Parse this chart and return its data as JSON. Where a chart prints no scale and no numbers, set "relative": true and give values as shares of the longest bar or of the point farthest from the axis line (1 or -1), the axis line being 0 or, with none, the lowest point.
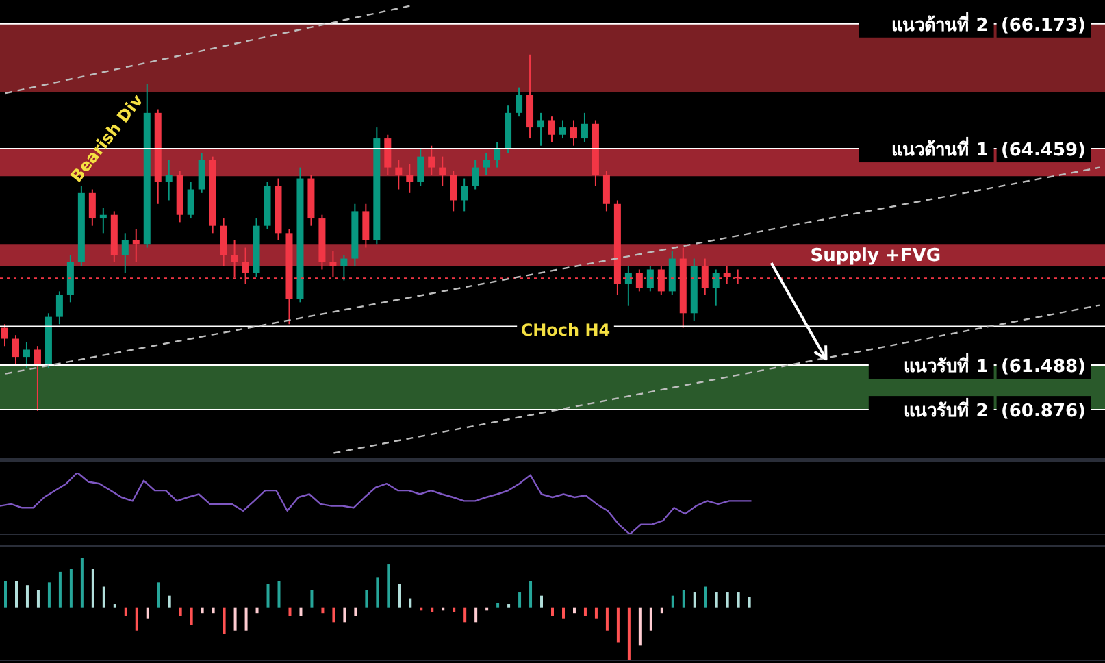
{
  "chart_data": [
    {
      "type": "candlestick",
      "categories": [
        null,
        null,
        null,
        null,
        null,
        null,
        null,
        null,
        null,
        null,
        null,
        null,
        null,
        null,
        null,
        null,
        null,
        null,
        null,
        null,
        null,
        null,
        null,
        null,
        null,
        null,
        null,
        null,
        null,
        null,
        null,
        null,
        null,
        null,
        null,
        null,
        null,
        null,
        null,
        null,
        null,
        null,
        null,
        null,
        null,
        null,
        null,
        null,
        null,
        null,
        null,
        null,
        null,
        null,
        null,
        null,
        null,
        null,
        null,
        null,
        null,
        null,
        null,
        null,
        null,
        null,
        null,
        null,
        null,
        null,
        null,
        null,
        null,
        null,
        null,
        null,
        null,
        null,
        null,
        null,
        null,
        null,
        null,
        null,
        null,
        null,
        null,
        null,
        null,
        null,
        null,
        null,
        null,
        null,
        null,
        null,
        null,
        null,
        null,
        null,
        null
      ],
      "ohlc": [
        [
          62.0,
          62.05,
          61.75,
          61.85
        ],
        [
          61.85,
          61.9,
          61.5,
          61.6
        ],
        [
          61.6,
          61.8,
          61.45,
          61.7
        ],
        [
          61.7,
          61.75,
          60.86,
          61.5
        ],
        [
          61.5,
          62.2,
          61.45,
          62.15
        ],
        [
          62.15,
          62.5,
          62.05,
          62.45
        ],
        [
          62.45,
          63.0,
          62.35,
          62.9
        ],
        [
          62.9,
          63.95,
          62.85,
          63.85
        ],
        [
          63.85,
          63.9,
          63.4,
          63.5
        ],
        [
          63.5,
          63.65,
          63.3,
          63.55
        ],
        [
          63.55,
          63.6,
          62.9,
          63.0
        ],
        [
          63.0,
          63.3,
          62.75,
          63.2
        ],
        [
          63.2,
          63.35,
          62.9,
          63.15
        ],
        [
          63.15,
          65.35,
          63.1,
          64.95
        ],
        [
          64.95,
          65.0,
          63.7,
          64.0
        ],
        [
          64.0,
          64.3,
          63.75,
          64.1
        ],
        [
          64.1,
          64.15,
          63.45,
          63.55
        ],
        [
          63.55,
          64.0,
          63.5,
          63.9
        ],
        [
          63.9,
          64.4,
          63.85,
          64.3
        ],
        [
          64.3,
          64.35,
          63.3,
          63.4
        ],
        [
          63.4,
          63.5,
          62.85,
          63.0
        ],
        [
          63.0,
          63.2,
          62.7,
          62.9
        ],
        [
          62.9,
          63.1,
          62.6,
          62.75
        ],
        [
          62.75,
          63.5,
          62.7,
          63.4
        ],
        [
          63.4,
          64.0,
          63.35,
          63.95
        ],
        [
          63.95,
          64.05,
          63.2,
          63.3
        ],
        [
          63.3,
          63.35,
          62.05,
          62.4
        ],
        [
          62.4,
          64.2,
          62.35,
          64.05
        ],
        [
          64.05,
          64.1,
          63.4,
          63.5
        ],
        [
          63.5,
          63.55,
          62.8,
          62.9
        ],
        [
          62.9,
          63.05,
          62.7,
          62.85
        ],
        [
          62.85,
          63.0,
          62.65,
          62.95
        ],
        [
          62.95,
          63.7,
          62.85,
          63.6
        ],
        [
          63.6,
          63.7,
          63.1,
          63.2
        ],
        [
          63.2,
          64.75,
          63.15,
          64.6
        ],
        [
          64.6,
          64.65,
          64.1,
          64.2
        ],
        [
          64.2,
          64.3,
          63.9,
          64.1
        ],
        [
          64.1,
          64.25,
          63.85,
          64.0
        ],
        [
          64.0,
          64.45,
          63.95,
          64.35
        ],
        [
          64.35,
          64.5,
          64.1,
          64.2
        ],
        [
          64.2,
          64.35,
          63.95,
          64.1
        ],
        [
          64.1,
          64.15,
          63.6,
          63.75
        ],
        [
          63.75,
          64.05,
          63.6,
          63.95
        ],
        [
          63.95,
          64.3,
          63.9,
          64.2
        ],
        [
          64.2,
          64.4,
          64.1,
          64.3
        ],
        [
          64.3,
          64.55,
          64.2,
          64.45
        ],
        [
          64.45,
          65.05,
          64.4,
          64.95
        ],
        [
          64.95,
          65.3,
          64.9,
          65.2
        ],
        [
          65.2,
          65.75,
          64.6,
          64.75
        ],
        [
          64.75,
          64.95,
          64.5,
          64.85
        ],
        [
          64.85,
          64.9,
          64.55,
          64.65
        ],
        [
          64.65,
          64.85,
          64.6,
          64.75
        ],
        [
          64.75,
          64.85,
          64.5,
          64.6
        ],
        [
          64.6,
          64.95,
          64.55,
          64.8
        ],
        [
          64.8,
          64.85,
          63.95,
          64.1
        ],
        [
          64.1,
          64.15,
          63.6,
          63.7
        ],
        [
          63.7,
          63.75,
          62.45,
          62.6
        ],
        [
          62.6,
          62.85,
          62.3,
          62.75
        ],
        [
          62.75,
          62.8,
          62.5,
          62.55
        ],
        [
          62.55,
          62.85,
          62.5,
          62.8
        ],
        [
          62.8,
          62.85,
          62.45,
          62.5
        ],
        [
          62.5,
          63.05,
          62.45,
          62.95
        ],
        [
          62.95,
          63.1,
          62.0,
          62.2
        ],
        [
          62.2,
          62.95,
          62.1,
          62.85
        ],
        [
          62.85,
          62.95,
          62.45,
          62.55
        ],
        [
          62.55,
          62.8,
          62.3,
          62.75
        ],
        [
          62.75,
          62.85,
          62.6,
          62.7
        ],
        [
          62.7,
          62.8,
          62.6,
          62.68
        ],
        null,
        null,
        null,
        null,
        null,
        null,
        null,
        null,
        null,
        null,
        null,
        null,
        null,
        null,
        null,
        null,
        null,
        null,
        null,
        null,
        null,
        null,
        null,
        null,
        null,
        null,
        null,
        null,
        null,
        null,
        null,
        null,
        null
      ],
      "colors": [
        "#f23645",
        "#f23645",
        "#089981",
        "#f23645",
        "#089981",
        "#089981",
        "#089981",
        "#089981",
        "#f23645",
        "#089981",
        "#f23645",
        "#089981",
        "#f23645",
        "#089981",
        "#f23645",
        "#089981",
        "#f23645",
        "#089981",
        "#089981",
        "#f23645",
        "#f23645",
        "#f23645",
        "#f23645",
        "#089981",
        "#089981",
        "#f23645",
        "#f23645",
        "#089981",
        "#f23645",
        "#f23645",
        "#f23645",
        "#089981",
        "#089981",
        "#f23645",
        "#089981",
        "#f23645",
        "#f23645",
        "#f23645",
        "#089981",
        "#f23645",
        "#f23645",
        "#f23645",
        "#089981",
        "#089981",
        "#089981",
        "#089981",
        "#089981",
        "#089981",
        "#f23645",
        "#089981",
        "#f23645",
        "#089981",
        "#f23645",
        "#089981",
        "#f23645",
        "#f23645",
        "#f23645",
        "#089981",
        "#f23645",
        "#089981",
        "#f23645",
        "#089981",
        "#f23645",
        "#089981",
        "#f23645",
        "#089981",
        "#f23645",
        "#f23645",
        null,
        null,
        null,
        null,
        null,
        null,
        null,
        null,
        null,
        null,
        null,
        null,
        null,
        null,
        null,
        null,
        null,
        null,
        null,
        null,
        null,
        null,
        null,
        null,
        null,
        null,
        null,
        null,
        null,
        null,
        null,
        null,
        null
      ],
      "series": [
        {
          "type": "line",
          "color": "#bdbdbd",
          "line_style": "dashed",
          "values": [
            65.22,
            null,
            null,
            null,
            null,
            null,
            null,
            null,
            null,
            null,
            null,
            null,
            null,
            null,
            null,
            null,
            null,
            null,
            null,
            null,
            null,
            null,
            null,
            null,
            null,
            null,
            null,
            null,
            null,
            null,
            null,
            null,
            null,
            null,
            null,
            null,
            null,
            66.42,
            null,
            null,
            null,
            null,
            null,
            null,
            null,
            null,
            null,
            null,
            null,
            null,
            null,
            null,
            null,
            null,
            null,
            null,
            null,
            null,
            null,
            null,
            null,
            null,
            null,
            null,
            null,
            null,
            null,
            null,
            null,
            null,
            null,
            null,
            null,
            null,
            null,
            null,
            null,
            null,
            null,
            null,
            null,
            null,
            null,
            null,
            null,
            null,
            null,
            null,
            null,
            null,
            null,
            null,
            null,
            null,
            null,
            null,
            null,
            null,
            null,
            null,
            null
          ]
        },
        {
          "type": "line",
          "color": "#bdbdbd",
          "line_style": "dashed",
          "values": [
            61.37,
            null,
            null,
            null,
            null,
            null,
            null,
            null,
            null,
            null,
            null,
            null,
            null,
            null,
            null,
            null,
            null,
            null,
            null,
            null,
            null,
            null,
            null,
            null,
            null,
            null,
            null,
            null,
            null,
            null,
            null,
            null,
            null,
            null,
            null,
            null,
            null,
            null,
            null,
            null,
            null,
            null,
            null,
            null,
            null,
            null,
            null,
            null,
            null,
            null,
            null,
            null,
            null,
            null,
            null,
            null,
            null,
            null,
            null,
            null,
            null,
            null,
            null,
            null,
            null,
            null,
            null,
            null,
            null,
            null,
            null,
            null,
            null,
            null,
            null,
            null,
            null,
            null,
            null,
            null,
            null,
            null,
            null,
            null,
            null,
            null,
            null,
            null,
            null,
            null,
            null,
            null,
            null,
            null,
            null,
            null,
            null,
            null,
            null,
            null,
            64.2
          ]
        },
        {
          "type": "line",
          "color": "#bdbdbd",
          "line_style": "dashed",
          "values": [
            null,
            null,
            null,
            null,
            null,
            null,
            null,
            null,
            null,
            null,
            null,
            null,
            null,
            null,
            null,
            null,
            null,
            null,
            null,
            null,
            null,
            null,
            null,
            null,
            null,
            null,
            null,
            null,
            null,
            null,
            60.28,
            null,
            null,
            null,
            null,
            null,
            null,
            null,
            null,
            null,
            null,
            null,
            null,
            null,
            null,
            null,
            null,
            null,
            null,
            null,
            null,
            null,
            null,
            null,
            null,
            null,
            null,
            null,
            null,
            null,
            null,
            null,
            null,
            null,
            null,
            null,
            null,
            null,
            null,
            null,
            null,
            null,
            null,
            null,
            null,
            null,
            null,
            null,
            null,
            null,
            null,
            null,
            null,
            null,
            null,
            null,
            null,
            null,
            null,
            null,
            null,
            null,
            null,
            null,
            null,
            null,
            null,
            null,
            null,
            null,
            62.31
          ]
        }
      ],
      "ylim": [
        60.2,
        66.5
      ],
      "yticks": [
        {
          "value": 66.173,
          "label": "(66.173)"
        },
        {
          "value": 64.459,
          "label": "(64.459)"
        },
        {
          "value": 61.488,
          "label": "(61.488)"
        },
        {
          "value": 60.876,
          "label": "(60.876)"
        }
      ],
      "tick_labels": "y",
      "bands": [
        {
          "axis": "y",
          "from": 65.23,
          "to": 66.173,
          "color": "#7b1f24"
        },
        {
          "axis": "y",
          "from": 64.08,
          "to": 64.459,
          "color": "#9b2530"
        },
        {
          "axis": "y",
          "from": 62.85,
          "to": 63.15,
          "label": "Supply +FVG",
          "color": "#9b2530"
        },
        {
          "axis": "y",
          "from": 60.876,
          "to": 61.488,
          "color": "#2a5a2b"
        }
      ],
      "ref_lines": [
        {
          "axis": "y",
          "value": 66.173,
          "label": "แนวต้านที่ 2",
          "color": "#ffffff"
        },
        {
          "axis": "y",
          "value": 64.459,
          "label": "แนวต้านที่ 1",
          "color": "#ffffff"
        },
        {
          "axis": "y",
          "value": 61.488,
          "label": "แนวรับที่ 1",
          "color": "#ffffff"
        },
        {
          "axis": "y",
          "value": 60.876,
          "label": "แนวรับที่ 2",
          "color": "#ffffff"
        },
        {
          "axis": "y",
          "value": 62.68,
          "color": "#f23645",
          "line_style": "dotted"
        },
        {
          "axis": "y",
          "value": 62.02,
          "color": "#ffffff"
        }
      ],
      "annotations": [
        "Bearish Div",
        "CHoch H4"
      ]
    },
    {
      "type": "line",
      "relative": true,
      "tick_labels": false,
      "categories": [
        null,
        null,
        null,
        null,
        null,
        null,
        null,
        null,
        null,
        null,
        null,
        null,
        null,
        null,
        null,
        null,
        null,
        null,
        null,
        null,
        null,
        null,
        null,
        null,
        null,
        null,
        null,
        null,
        null,
        null,
        null,
        null,
        null,
        null,
        null,
        null,
        null,
        null,
        null,
        null,
        null,
        null,
        null,
        null,
        null,
        null,
        null,
        null,
        null,
        null,
        null,
        null,
        null,
        null,
        null,
        null,
        null,
        null,
        null,
        null,
        null,
        null,
        null,
        null,
        null,
        null,
        null,
        null,
        null,
        null,
        null,
        null,
        null,
        null,
        null,
        null,
        null,
        null,
        null,
        null,
        null,
        null,
        null,
        null,
        null,
        null,
        null,
        null,
        null,
        null,
        null,
        null,
        null,
        null,
        null,
        null,
        null,
        null,
        null,
        null,
        null
      ],
      "series": [
        {
          "color": "#7e57c2",
          "values": [
            0.46,
            0.49,
            0.43,
            0.43,
            0.6,
            0.71,
            0.82,
            1,
            0.85,
            0.82,
            0.71,
            0.6,
            0.54,
            0.87,
            0.71,
            0.71,
            0.54,
            0.6,
            0.65,
            0.49,
            0.49,
            0.49,
            0.38,
            0.54,
            0.71,
            0.71,
            0.38,
            0.6,
            0.65,
            0.49,
            0.46,
            0.46,
            0.43,
            0.6,
            0.76,
            0.82,
            0.71,
            0.71,
            0.65,
            0.71,
            0.65,
            0.6,
            0.54,
            0.54,
            0.6,
            0.65,
            0.71,
            0.82,
            0.96,
            0.65,
            0.6,
            0.65,
            0.6,
            0.63,
            0.49,
            0.38,
            0.16,
            0,
            0.16,
            0.16,
            0.22,
            0.43,
            0.33,
            0.46,
            0.54,
            0.49,
            0.54,
            0.54,
            0.54,
            null,
            null,
            null,
            null,
            null,
            null,
            null,
            null,
            null,
            null,
            null,
            null,
            null,
            null,
            null,
            null,
            null,
            null,
            null,
            null,
            null,
            null,
            null,
            null,
            null,
            null,
            null,
            null,
            null,
            null,
            null,
            null
          ]
        }
      ]
    },
    {
      "type": "bar",
      "relative": true,
      "tick_labels": false,
      "categories": [
        null,
        null,
        null,
        null,
        null,
        null,
        null,
        null,
        null,
        null,
        null,
        null,
        null,
        null,
        null,
        null,
        null,
        null,
        null,
        null,
        null,
        null,
        null,
        null,
        null,
        null,
        null,
        null,
        null,
        null,
        null,
        null,
        null,
        null,
        null,
        null,
        null,
        null,
        null,
        null,
        null,
        null,
        null,
        null,
        null,
        null,
        null,
        null,
        null,
        null,
        null,
        null,
        null,
        null,
        null,
        null,
        null,
        null,
        null,
        null,
        null,
        null,
        null,
        null,
        null,
        null,
        null,
        null,
        null,
        null,
        null,
        null,
        null,
        null,
        null,
        null,
        null,
        null,
        null,
        null,
        null,
        null,
        null,
        null,
        null,
        null,
        null,
        null,
        null,
        null,
        null,
        null,
        null,
        null,
        null,
        null,
        null,
        null,
        null,
        null,
        null
      ],
      "values": [
        0.5,
        0.5,
        0.42,
        0.33,
        0.47,
        0.67,
        0.72,
        0.94,
        0.72,
        0.39,
        0.06,
        -0.17,
        -0.44,
        -0.22,
        0.47,
        0.22,
        -0.17,
        -0.33,
        -0.11,
        -0.11,
        -0.5,
        -0.44,
        -0.44,
        -0.11,
        0.44,
        0.5,
        -0.17,
        -0.17,
        0.33,
        -0.11,
        -0.28,
        -0.28,
        -0.17,
        0.33,
        0.56,
        0.81,
        0.44,
        0.17,
        -0.06,
        -0.09,
        -0.06,
        -0.09,
        -0.28,
        -0.28,
        -0.06,
        0.08,
        0.06,
        0.28,
        0.5,
        0.22,
        -0.17,
        -0.22,
        -0.11,
        -0.17,
        -0.22,
        -0.44,
        -0.67,
        -1,
        -0.72,
        -0.44,
        -0.11,
        0.22,
        0.33,
        0.28,
        0.39,
        0.28,
        0.28,
        0.28,
        0.2,
        null,
        null,
        null,
        null,
        null,
        null,
        null,
        null,
        null,
        null,
        null,
        null,
        null,
        null,
        null,
        null,
        null,
        null,
        null,
        null,
        null,
        null,
        null,
        null,
        null,
        null,
        null,
        null,
        null,
        null,
        null,
        null
      ],
      "colors": [
        "#26a69a",
        "#b2dfdb",
        "#b2dfdb",
        "#b2dfdb",
        "#26a69a",
        "#26a69a",
        "#26a69a",
        "#26a69a",
        "#b2dfdb",
        "#b2dfdb",
        "#b2dfdb",
        "#ff5252",
        "#ff5252",
        "#ffcdd2",
        "#26a69a",
        "#b2dfdb",
        "#ff5252",
        "#ff5252",
        "#ffcdd2",
        "#ffcdd2",
        "#ff5252",
        "#ffcdd2",
        "#ffcdd2",
        "#ffcdd2",
        "#26a69a",
        "#26a69a",
        "#ff5252",
        "#ffcdd2",
        "#26a69a",
        "#ff5252",
        "#ff5252",
        "#ffcdd2",
        "#ffcdd2",
        "#26a69a",
        "#26a69a",
        "#26a69a",
        "#b2dfdb",
        "#b2dfdb",
        "#ff5252",
        "#ff5252",
        "#ffcdd2",
        "#ff5252",
        "#ff5252",
        "#ffcdd2",
        "#ffcdd2",
        "#26a69a",
        "#b2dfdb",
        "#26a69a",
        "#26a69a",
        "#b2dfdb",
        "#ff5252",
        "#ff5252",
        "#ffcdd2",
        "#ff5252",
        "#ff5252",
        "#ff5252",
        "#ff5252",
        "#ff5252",
        "#ffcdd2",
        "#ffcdd2",
        "#ffcdd2",
        "#26a69a",
        "#26a69a",
        "#b2dfdb",
        "#26a69a",
        "#b2dfdb",
        "#b2dfdb",
        "#b2dfdb",
        "#b2dfdb",
        null,
        null,
        null,
        null,
        null,
        null,
        null,
        null,
        null,
        null,
        null,
        null,
        null,
        null,
        null,
        null,
        null,
        null,
        null,
        null,
        null,
        null,
        null,
        null,
        null,
        null,
        null,
        null,
        null,
        null,
        null,
        null
      ]
    }
  ]
}
